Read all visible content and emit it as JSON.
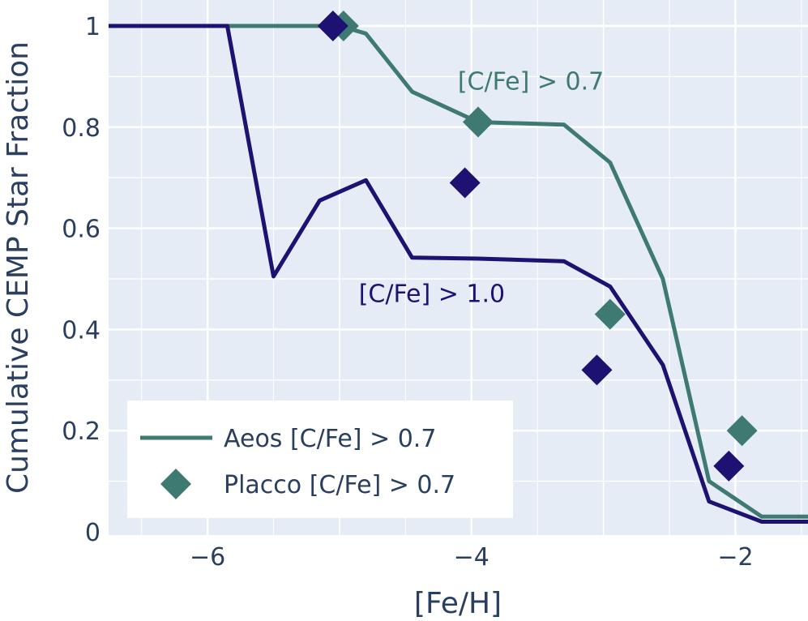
{
  "chart_data": {
    "type": "line",
    "xlabel": "[Fe/H]",
    "ylabel": "Cumulative CEMP Star Fraction",
    "xlim": [
      -6.75,
      -1.45
    ],
    "ylim": [
      0,
      1.05
    ],
    "x_ticks": [
      -6,
      -4,
      -2
    ],
    "x_tick_labels": [
      "−6",
      "−4",
      "−2"
    ],
    "y_ticks": [
      0,
      0.2,
      0.4,
      0.6,
      0.8,
      1
    ],
    "y_tick_labels": [
      "0",
      "0.2",
      "0.4",
      "0.6",
      "0.8",
      "1"
    ],
    "grid": true,
    "legend_position": "bottom-left",
    "colors": {
      "plot_bg": "#e5ecf6",
      "grid": "#ffffff",
      "teal": "#3f7a72",
      "navy": "#1d1272",
      "text": "#2a3f5f"
    },
    "series": [
      {
        "name": "Aeos [C/Fe] > 0.7",
        "type": "line",
        "color": "#3f7a72",
        "x": [
          -6.75,
          -5.85,
          -5.0,
          -4.8,
          -4.45,
          -3.95,
          -3.3,
          -2.95,
          -2.55,
          -2.2,
          -1.8,
          -1.45
        ],
        "y": [
          1.0,
          1.0,
          1.0,
          0.985,
          0.87,
          0.81,
          0.805,
          0.73,
          0.5,
          0.1,
          0.03,
          0.03
        ]
      },
      {
        "type": "line",
        "color": "#1d1272",
        "x": [
          -6.75,
          -5.85,
          -5.5,
          -5.15,
          -4.8,
          -4.45,
          -3.95,
          -3.3,
          -2.95,
          -2.55,
          -2.2,
          -1.8,
          -1.45
        ],
        "y": [
          1.0,
          1.0,
          0.505,
          0.655,
          0.695,
          0.542,
          0.54,
          0.535,
          0.485,
          0.33,
          0.06,
          0.02,
          0.02
        ]
      },
      {
        "name": "Placco [C/Fe] > 0.7",
        "type": "scatter",
        "color": "#3f7a72",
        "x": [
          -4.97,
          -3.95,
          -2.95,
          -1.95
        ],
        "y": [
          1.0,
          0.81,
          0.43,
          0.2
        ]
      },
      {
        "type": "scatter",
        "color": "#1d1272",
        "x": [
          -5.05,
          -4.05,
          -3.05,
          -2.05
        ],
        "y": [
          1.0,
          0.69,
          0.32,
          0.13
        ]
      }
    ],
    "annotations": [
      {
        "text": "[C/Fe] > 0.7",
        "x": -3.55,
        "y": 0.89,
        "color": "#3f7a72"
      },
      {
        "text": "[C/Fe] > 1.0",
        "x": -4.3,
        "y": 0.47,
        "color": "#1d1272"
      }
    ],
    "legend": [
      {
        "label": "Aeos [C/Fe] > 0.7",
        "symbol": "line",
        "color": "#3f7a72"
      },
      {
        "label": "Placco [C/Fe] > 0.7",
        "symbol": "diamond",
        "color": "#3f7a72"
      }
    ]
  }
}
